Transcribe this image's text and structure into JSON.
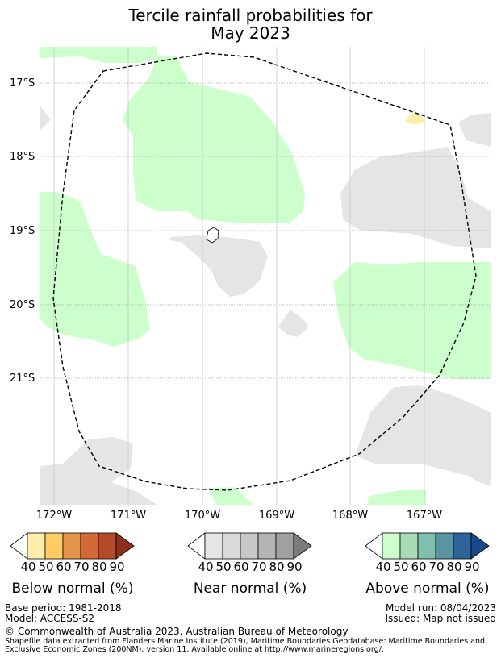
{
  "title": {
    "line1": "Tercile rainfall probabilities for",
    "line2": "May 2023"
  },
  "map": {
    "lat_labels": [
      "17°S",
      "18°S",
      "19°S",
      "20°S",
      "21°S"
    ],
    "lon_labels": [
      "172°W",
      "171°W",
      "170°W",
      "169°W",
      "168°W",
      "167°W"
    ]
  },
  "colors": {
    "above_normal": "#ccffcc",
    "near_normal": "#e5e5e5",
    "below_normal": "#ffeeaa"
  },
  "legend": {
    "below": {
      "label": "Below normal (%)",
      "ticks": [
        "40",
        "50",
        "60",
        "70",
        "80",
        "90"
      ],
      "colors": [
        "#ffeeaa",
        "#ffcc66",
        "#e3954a",
        "#d16a36",
        "#b34a2a",
        "#8c2f1c"
      ]
    },
    "near": {
      "label": "Near normal (%)",
      "ticks": [
        "40",
        "50",
        "60",
        "70",
        "80",
        "90"
      ],
      "colors": [
        "#e5e5e5",
        "#d9d9d9",
        "#c8c8c8",
        "#b5b5b5",
        "#a0a0a0",
        "#7a7a7a"
      ]
    },
    "above": {
      "label": "Above normal (%)",
      "ticks": [
        "40",
        "50",
        "60",
        "70",
        "80",
        "90"
      ],
      "colors": [
        "#ccffcc",
        "#a6dcb8",
        "#80bfb0",
        "#5a94a2",
        "#2f6399",
        "#164a8a"
      ]
    }
  },
  "footer": {
    "base_period": "Base period: 1981-2018",
    "model": "Model: ACCESS-S2",
    "model_run": "Model run: 08/04/2023",
    "issued": "Issued: Map not issued",
    "copyright": "© Commonwealth of Australia 2023, Australian Bureau of Meteorology",
    "shapefile_line1": "Shapefile data extracted from Flanders Marine Institute (2019), Maritime Boundaries Geodatabase: Maritime Boundaries and",
    "shapefile_line2": "Exclusive Economic Zones (200NM), version 11. Available online at http://www.marineregions.org/."
  }
}
